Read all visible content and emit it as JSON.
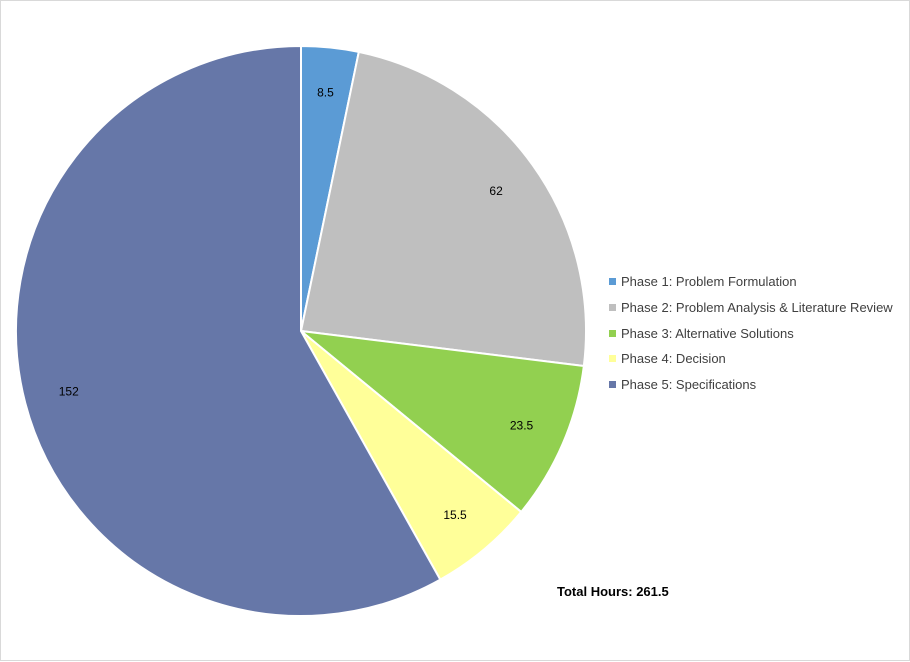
{
  "chart_data": {
    "type": "pie",
    "categories": [
      "Phase 1: Problem Formulation",
      "Phase 2: Problem Analysis & Literature Review",
      "Phase 3: Alternative Solutions",
      "Phase 4: Decision",
      "Phase 5: Specifications"
    ],
    "values": [
      8.5,
      62,
      23.5,
      15.5,
      152
    ],
    "value_labels": [
      "8.5",
      "62",
      "23.5",
      "15.5",
      "152"
    ],
    "colors": [
      "#5b9bd5",
      "#bfbfbf",
      "#92d050",
      "#ffff99",
      "#6677a8"
    ],
    "legend_position": "right",
    "start_angle": "top, clockwise",
    "annotation": "Total Hours: 261.5"
  }
}
